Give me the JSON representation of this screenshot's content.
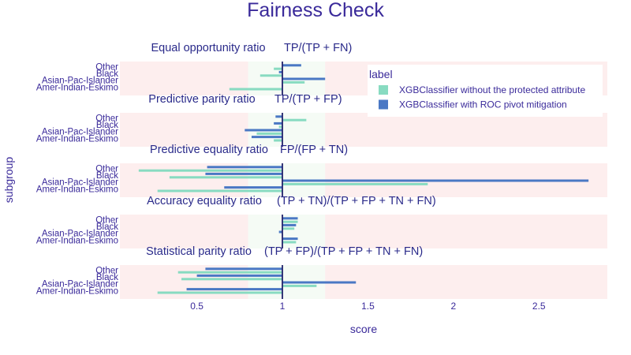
{
  "chart_data": {
    "type": "bar",
    "orientation": "horizontal",
    "title": "Fairness Check",
    "xlabel": "score",
    "ylabel": "subgroup",
    "xlim": [
      0.05,
      2.9
    ],
    "x_ticks": [
      0.5,
      1,
      1.5,
      2,
      2.5
    ],
    "x_tick_labels": [
      "0.5",
      "1",
      "1.5",
      "2",
      "2.5"
    ],
    "reference_line": 1,
    "fair_band": [
      0.8,
      1.25
    ],
    "colors": {
      "title": "#3a2a9a",
      "text": "#3a2a9a",
      "panel_label": "#2a2a8a",
      "unfair_zone": "#fdeeee",
      "fair_zone": "#f5fbf5",
      "reference_line": "#23236b",
      "background": "#ffffff"
    },
    "subgroups": [
      "Other",
      "Black",
      "Asian-Pac-Islander",
      "Amer-Indian-Eskimo"
    ],
    "legend": {
      "title": "label",
      "position": "top-right",
      "entries": [
        {
          "name": "XGBClassifier without the protected attribute",
          "color": "#88dbc1"
        },
        {
          "name": "XGBClassifier with ROC pivot mitigation",
          "color": "#4a78c4"
        }
      ]
    },
    "panels": [
      {
        "metric": "Equal opportunity ratio",
        "formula": "TP/(TP + FN)",
        "series": [
          {
            "name": "XGBClassifier without the protected attribute",
            "values": [
              0.95,
              0.87,
              1.13,
              0.69
            ]
          },
          {
            "name": "XGBClassifier with ROC pivot mitigation",
            "values": [
              1.11,
              0.98,
              1.25,
              1.0
            ]
          }
        ]
      },
      {
        "metric": "Predictive parity ratio",
        "formula": "TP/(TP + FP)",
        "series": [
          {
            "name": "XGBClassifier without the protected attribute",
            "values": [
              1.14,
              0.98,
              0.85,
              0.95
            ]
          },
          {
            "name": "XGBClassifier with ROC pivot mitigation",
            "values": [
              0.96,
              0.95,
              0.78,
              0.82
            ]
          }
        ]
      },
      {
        "metric": "Predictive equality ratio",
        "formula": "FP/(FP + TN)",
        "series": [
          {
            "name": "XGBClassifier without the protected attribute",
            "values": [
              0.16,
              0.34,
              1.85,
              0.27
            ]
          },
          {
            "name": "XGBClassifier with ROC pivot mitigation",
            "values": [
              0.56,
              0.55,
              2.79,
              0.66
            ]
          }
        ]
      },
      {
        "metric": "Accuracy equality ratio",
        "formula": "(TP + TN)/(TP + FP + TN + FN)",
        "series": [
          {
            "name": "XGBClassifier without the protected attribute",
            "values": [
              1.09,
              1.07,
              1.0,
              1.08
            ]
          },
          {
            "name": "XGBClassifier with ROC pivot mitigation",
            "values": [
              1.09,
              1.08,
              0.98,
              1.09
            ]
          }
        ]
      },
      {
        "metric": "Statistical parity ratio",
        "formula": "(TP + FP)/(TP + FP + TN + FN)",
        "series": [
          {
            "name": "XGBClassifier without the protected attribute",
            "values": [
              0.39,
              0.41,
              1.2,
              0.27
            ]
          },
          {
            "name": "XGBClassifier with ROC pivot mitigation",
            "values": [
              0.55,
              0.5,
              1.43,
              0.44
            ]
          }
        ]
      }
    ]
  }
}
